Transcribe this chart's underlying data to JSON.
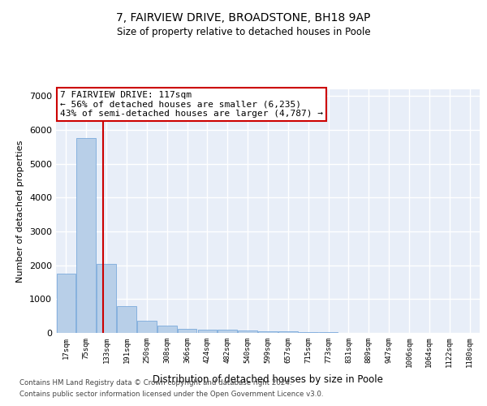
{
  "title1": "7, FAIRVIEW DRIVE, BROADSTONE, BH18 9AP",
  "title2": "Size of property relative to detached houses in Poole",
  "xlabel": "Distribution of detached houses by size in Poole",
  "ylabel": "Number of detached properties",
  "categories": [
    "17sqm",
    "75sqm",
    "133sqm",
    "191sqm",
    "250sqm",
    "308sqm",
    "366sqm",
    "424sqm",
    "482sqm",
    "540sqm",
    "599sqm",
    "657sqm",
    "715sqm",
    "773sqm",
    "831sqm",
    "889sqm",
    "947sqm",
    "1006sqm",
    "1064sqm",
    "1122sqm",
    "1180sqm"
  ],
  "values": [
    1750,
    5750,
    2050,
    800,
    370,
    210,
    130,
    100,
    95,
    75,
    60,
    50,
    30,
    15,
    10,
    8,
    5,
    4,
    3,
    2,
    2
  ],
  "bar_color": "#b8cfe8",
  "bar_edge_color": "#6a9fd8",
  "bg_color": "#e8eef8",
  "grid_color": "#ffffff",
  "annotation_text": "7 FAIRVIEW DRIVE: 117sqm\n← 56% of detached houses are smaller (6,235)\n43% of semi-detached houses are larger (4,787) →",
  "annotation_box_color": "#ffffff",
  "annotation_box_edge": "#cc0000",
  "vline_x": 1.82,
  "vline_color": "#cc0000",
  "ylim": [
    0,
    7200
  ],
  "yticks": [
    0,
    1000,
    2000,
    3000,
    4000,
    5000,
    6000,
    7000
  ],
  "footnote1": "Contains HM Land Registry data © Crown copyright and database right 2024.",
  "footnote2": "Contains public sector information licensed under the Open Government Licence v3.0."
}
